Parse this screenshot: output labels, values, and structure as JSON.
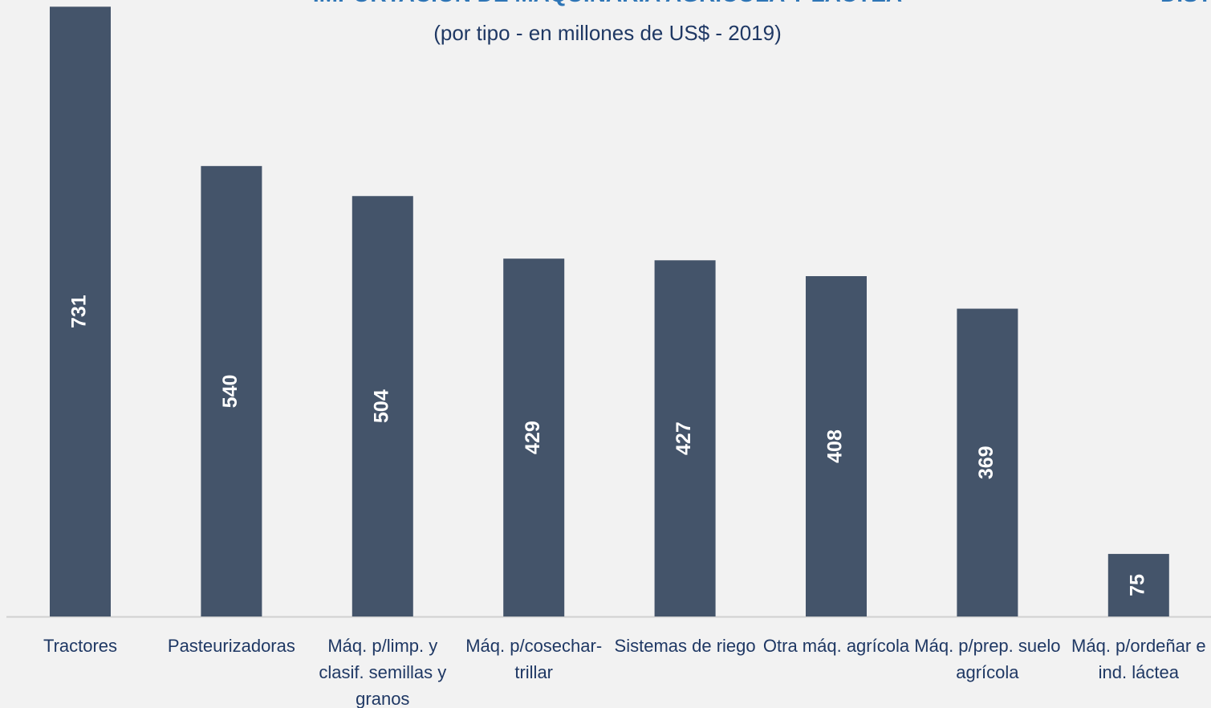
{
  "chart_data": {
    "type": "bar",
    "title": "IMPORTACIÓN DE MAQUINARIA AGRÍCOLA Y LÁCTEA",
    "subtitle": "(por tipo -  en millones de US$ - 2019)",
    "corner_text": "DIST",
    "categories": [
      "Tractores",
      "Pasteurizadoras",
      "Máq. p/limp. y clasif. semillas y granos",
      "Máq. p/cosechar-trillar",
      "Sistemas de riego",
      "Otra máq. agrícola",
      "Máq. p/prep. suelo agrícola",
      "Máq. p/ordeñar e ind. láctea"
    ],
    "values": [
      731,
      540,
      504,
      429,
      427,
      408,
      369,
      75
    ],
    "color": "#44546a",
    "ylim": [
      0,
      740
    ]
  }
}
